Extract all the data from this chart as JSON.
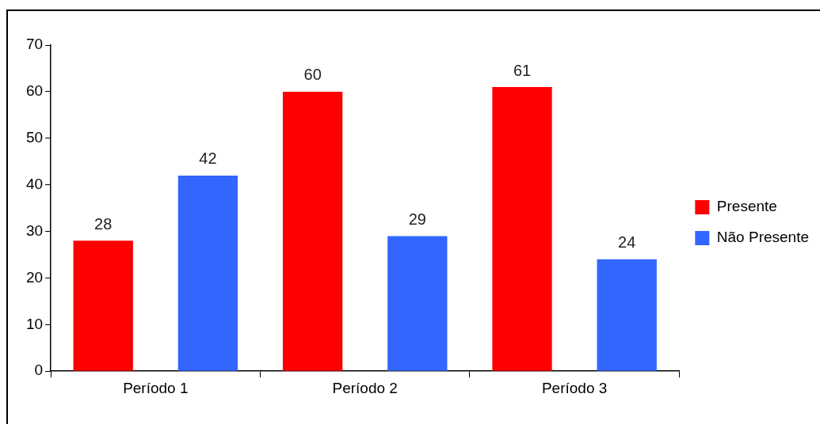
{
  "chart_data": {
    "type": "bar",
    "categories": [
      "Período 1",
      "Período 2",
      "Período 3"
    ],
    "series": [
      {
        "name": "Presente",
        "color": "#ff0000",
        "values": [
          28,
          60,
          61
        ]
      },
      {
        "name": "Não Presente",
        "color": "#3366ff",
        "values": [
          42,
          29,
          24
        ]
      }
    ],
    "ylim": [
      0,
      70
    ],
    "yticks": [
      0,
      10,
      20,
      30,
      40,
      50,
      60,
      70
    ],
    "grid": false,
    "legend": "right",
    "data_labels": true
  }
}
